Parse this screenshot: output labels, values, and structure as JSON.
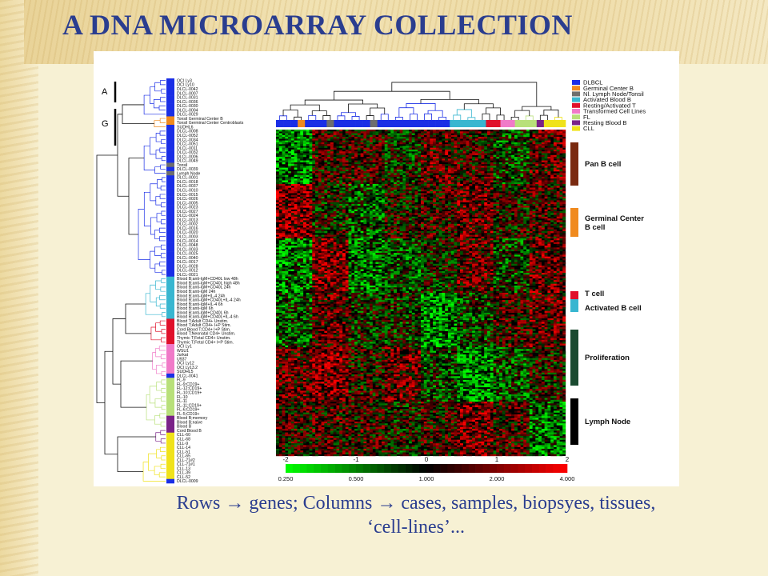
{
  "slide": {
    "title": "A   DNA MICROARRAY COLLECTION",
    "caption_line1": "Rows → genes; Columns → cases, samples, biopsyes, tissues,",
    "caption_line2": "‘cell-lines’..."
  },
  "figure": {
    "cluster_markers": [
      "A",
      "G"
    ],
    "row_labels": [
      "OCI Ly3",
      "OCI Ly10",
      "DLCL-0042",
      "DLCL-0007",
      "DLCL-0031",
      "DLCL-0036",
      "DLCL-0030",
      "DLCL-0004",
      "DLCL-0029",
      "Tonsil Germinal Center B",
      "Tonsil Germinal Center Centroblasts",
      "SUDHL6",
      "DLCL-0008",
      "DLCL-0052",
      "DLCL-0034",
      "DLCL-0051",
      "DLCL-0011",
      "DLCL-0032",
      "DLCL-0006",
      "DLCL-0049",
      "Tonsil",
      "DLCL-0039",
      "Lymph Node",
      "DLCL-0001",
      "DLCL-0018",
      "DLCL-0037",
      "DLCL-0010",
      "DLCL-0015",
      "DLCL-0026",
      "DLCL-0005",
      "DLCL-0023",
      "DLCL-0027",
      "DLCL-0024",
      "DLCL-0013",
      "DLCL-0002",
      "DLCL-0016",
      "DLCL-0020",
      "DLCL-0003",
      "DLCL-0014",
      "DLCL-0048",
      "DLCL-0033",
      "DLCL-0025",
      "DLCL-0040",
      "DLCL-0017",
      "DLCL-0028",
      "DLCL-0012",
      "DLCL-0021",
      "Blood B;anti-IgM+CD40L low 48h",
      "Blood B;anti-IgM+CD40L high 48h",
      "Blood B;anti-IgM+CD40L 24h",
      "Blood B;anti-IgM 24h",
      "Blood B;anti-IgM+IL-4 24h",
      "Blood B;anti-IgM+CD40L+IL-4 24h",
      "Blood B;anti-IgM+IL-4 6h",
      "Blood B;anti-IgM 6h",
      "Blood B;anti-IgM+CD40L 6h",
      "Blood B;anti-IgM+CD40L+IL-4 6h",
      "Blood T;Adult CD4+ Unstim.",
      "Blood T;Adult CD4+ I+P Stim.",
      "Cord Blood T;CD4+ I+P Stim.",
      "Blood T;Neonatal CD4+ Unstim.",
      "Thymic T;Fetal CD4+ Unstim.",
      "Thymic T;Fetal CD4+ I+P Stim.",
      "OCI Ly1",
      "WSU1",
      "Jurkat",
      "U937",
      "OCI Ly12",
      "OCI Ly13.2",
      "SUDHL5",
      "DLCL-0041",
      "FL-9",
      "FL-9;CD19+",
      "FL-12;CD19+",
      "FL-10;CD19+",
      "FL-10",
      "FL-11",
      "FL-11;CD19+",
      "FL-6;CD19+",
      "FL-5;CD19+",
      "Blood B;memory",
      "Blood B;naive",
      "Blood B",
      "Cord Blood B",
      "CLL-60",
      "CLL-68",
      "CLL-9",
      "CLL-14",
      "CLL-51",
      "CLL-65",
      "CLL-71#2",
      "CLL-71#1",
      "CLL-13",
      "CLL-39",
      "CLL-52",
      "DLCL-0009"
    ],
    "legend_top": [
      {
        "label": "DLBCL",
        "color": "#1a2ee6"
      },
      {
        "label": "Germinal Center B",
        "color": "#f08a1e"
      },
      {
        "label": "Nl. Lymph Node/Tonsil",
        "color": "#6e6e6e"
      },
      {
        "label": "Activated Blood B",
        "color": "#38b6d0"
      },
      {
        "label": "Resting/Activated T",
        "color": "#e0102a"
      },
      {
        "label": "Transformed Cell Lines",
        "color": "#f07ac8"
      },
      {
        "label": "FL",
        "color": "#b8e07a"
      },
      {
        "label": "Resting Blood B",
        "color": "#7a2288"
      },
      {
        "label": "CLL",
        "color": "#f0e21a"
      }
    ],
    "gene_clusters": [
      {
        "label": "Pan B cell",
        "color": "#7a2a10"
      },
      {
        "label": "Germinal Center B cell",
        "label_line1": "Germinal Center",
        "label_line2": "B cell",
        "color": "#f08a1e"
      },
      {
        "label": "T cell",
        "color": "#e0102a"
      },
      {
        "label": "Activated B cell",
        "color": "#38b6d0"
      },
      {
        "label": "Proliferation",
        "color": "#1a4a30"
      },
      {
        "label": "Lymph Node",
        "color": "#000000"
      }
    ],
    "scale": {
      "log_ticks": [
        "-2",
        "-1",
        "0",
        "1",
        "2"
      ],
      "ratio_ticks": [
        "0.250",
        "0.500",
        "1.000",
        "2.000",
        "4.000"
      ],
      "low_color": "#00ff00",
      "mid_color": "#000000",
      "high_color": "#ff0000"
    }
  }
}
